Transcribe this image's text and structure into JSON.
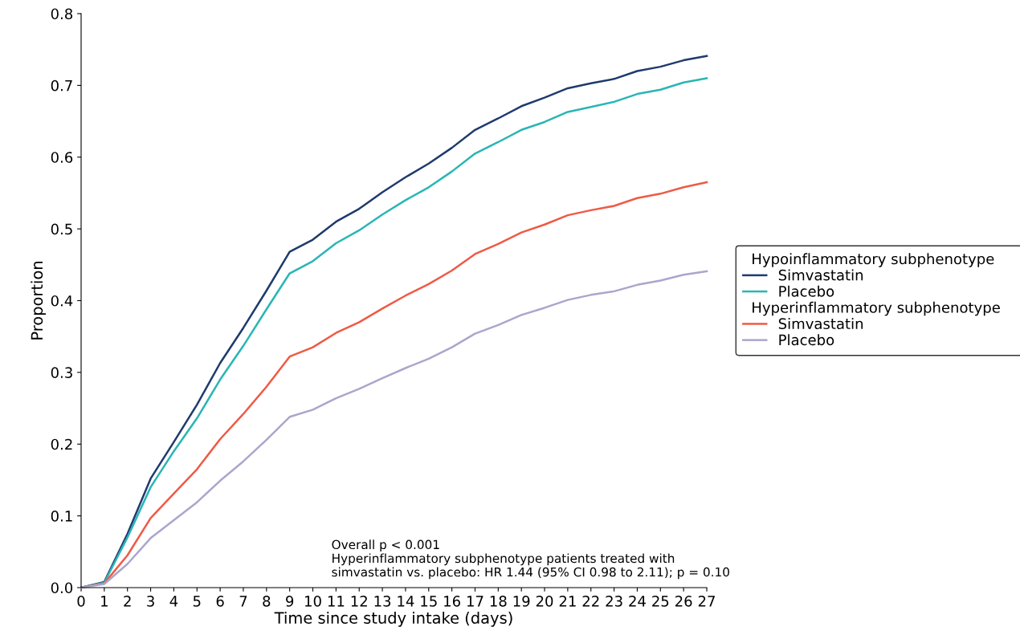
{
  "chart_data": {
    "type": "line",
    "xlabel": "Time since study intake (days)",
    "ylabel": "Proportion",
    "x": [
      0,
      1,
      2,
      3,
      4,
      5,
      6,
      7,
      8,
      9,
      10,
      11,
      12,
      13,
      14,
      15,
      16,
      17,
      18,
      19,
      20,
      21,
      22,
      23,
      24,
      25,
      26,
      27
    ],
    "legend_title": [
      "Hypoinflammatory subphenotype",
      "Hyperinflammatory subphenotype"
    ],
    "series": [
      {
        "name": "Simvastatin",
        "color": "#1f3a6e",
        "values": [
          0,
          0.008,
          0.075,
          0.152,
          0.203,
          0.255,
          0.313,
          0.362,
          0.414,
          0.468,
          0.485,
          0.51,
          0.528,
          0.551,
          0.572,
          0.591,
          0.613,
          0.638,
          0.654,
          0.671,
          0.683,
          0.696,
          0.703,
          0.709,
          0.72,
          0.726,
          0.735,
          0.741
        ]
      },
      {
        "name": "Placebo",
        "color": "#2ab5b5",
        "values": [
          0,
          0.007,
          0.07,
          0.14,
          0.19,
          0.236,
          0.29,
          0.337,
          0.388,
          0.438,
          0.455,
          0.48,
          0.498,
          0.52,
          0.54,
          0.558,
          0.58,
          0.605,
          0.621,
          0.638,
          0.649,
          0.663,
          0.67,
          0.677,
          0.688,
          0.694,
          0.704,
          0.71
        ]
      },
      {
        "name": "Simvastatin",
        "color": "#ef5a45",
        "values": [
          0,
          0.006,
          0.045,
          0.097,
          0.131,
          0.165,
          0.207,
          0.242,
          0.28,
          0.322,
          0.335,
          0.355,
          0.37,
          0.389,
          0.407,
          0.423,
          0.442,
          0.465,
          0.479,
          0.495,
          0.506,
          0.519,
          0.526,
          0.532,
          0.543,
          0.549,
          0.558,
          0.565
        ]
      },
      {
        "name": "Placebo",
        "color": "#aaa6cc",
        "values": [
          0,
          0.005,
          0.033,
          0.069,
          0.094,
          0.119,
          0.149,
          0.176,
          0.206,
          0.238,
          0.248,
          0.264,
          0.277,
          0.292,
          0.306,
          0.319,
          0.335,
          0.354,
          0.366,
          0.38,
          0.39,
          0.401,
          0.408,
          0.413,
          0.422,
          0.428,
          0.436,
          0.441
        ]
      }
    ],
    "xlim": [
      0,
      27
    ],
    "ylim": [
      0,
      0.8
    ],
    "xticks": [
      0,
      1,
      2,
      3,
      4,
      5,
      6,
      7,
      8,
      9,
      10,
      11,
      12,
      13,
      14,
      15,
      16,
      17,
      18,
      19,
      20,
      21,
      22,
      23,
      24,
      25,
      26,
      27
    ],
    "yticks": [
      {
        "value": 0,
        "label": "0.0"
      },
      0.1,
      0.2,
      0.3,
      0.4,
      0.5,
      0.6,
      0.7,
      0.8
    ],
    "annotations": [
      "Overall p < 0.001\nHyperinflammatory subphenotype patients treated with\nsimvastatin vs. placebo: HR 1.44 (95% CI 0.98 to 2.11); p = 0.10"
    ],
    "legend": "right",
    "grid": false,
    "marker": "none",
    "line_style": "solid"
  }
}
